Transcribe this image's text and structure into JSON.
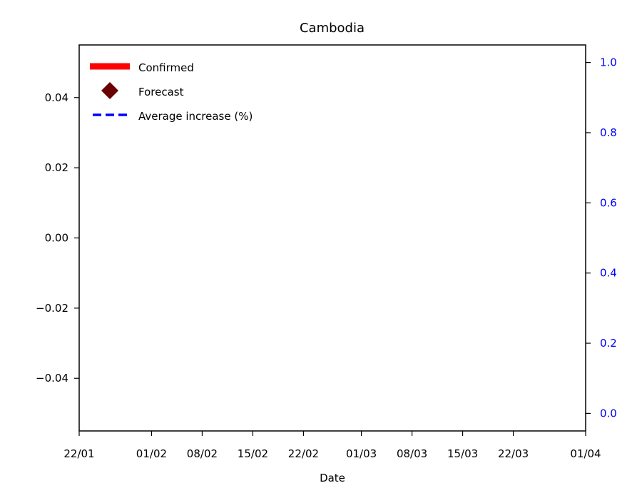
{
  "chart_data": {
    "type": "line",
    "title": "Cambodia",
    "xlabel": "Date",
    "ylabel": "",
    "y2label": "",
    "x_ticks": [
      "22/01",
      "01/02",
      "08/02",
      "15/02",
      "22/02",
      "01/03",
      "08/03",
      "15/03",
      "22/03",
      "01/04"
    ],
    "x_tick_day_index": [
      0,
      10,
      17,
      24,
      31,
      39,
      46,
      53,
      60,
      70
    ],
    "x_range_day_index": [
      0,
      70
    ],
    "ylim": [
      -0.055,
      0.055
    ],
    "y_ticks": [
      0.04,
      0.02,
      0.0,
      -0.02,
      -0.04
    ],
    "y_tick_labels": [
      "0.04",
      "0.02",
      "0.00",
      "−0.02",
      "−0.04"
    ],
    "y2lim": [
      -0.05,
      1.05
    ],
    "y2_ticks": [
      1.0,
      0.8,
      0.6,
      0.4,
      0.2,
      0.0
    ],
    "y2_tick_labels": [
      "1.0",
      "0.8",
      "0.6",
      "0.4",
      "0.2",
      "0.0"
    ],
    "grid": false,
    "legend_position": "upper-left",
    "series": [
      {
        "name": "Confirmed",
        "axis": "left",
        "style": "line",
        "color": "#ff0000",
        "x": [],
        "y": []
      },
      {
        "name": "Forecast",
        "axis": "left",
        "style": "marker-diamond",
        "color": "#6b0000",
        "x": [],
        "y": []
      },
      {
        "name": "Average increase (%)",
        "axis": "right",
        "style": "dashed-line",
        "color": "#0000ff",
        "x": [],
        "y": []
      }
    ],
    "colors": {
      "axis": "#000000",
      "right_axis": "#0000ff"
    }
  }
}
